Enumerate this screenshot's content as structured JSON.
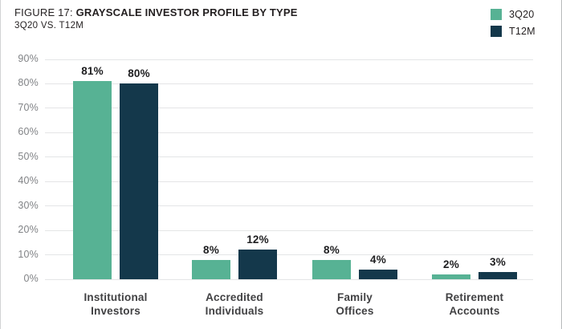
{
  "header": {
    "title_prefix": "FIGURE 17:",
    "title_main": "GRAYSCALE INVESTOR PROFILE BY TYPE",
    "subtitle": "3Q20 VS. T12M"
  },
  "colors": {
    "series_3q20": "#57b294",
    "series_t12m": "#14384b",
    "gridline": "#e4e5e6",
    "ytick_label": "#818386",
    "category_label": "#414143",
    "value_label": "#1e1e20",
    "title_text": "#231f20"
  },
  "chart_data": {
    "type": "bar",
    "title": "FIGURE 17: GRAYSCALE INVESTOR PROFILE BY TYPE",
    "subtitle": "3Q20 VS. T12M",
    "categories": [
      [
        "Institutional",
        "Investors"
      ],
      [
        "Accredited",
        "Individuals"
      ],
      [
        "Family",
        "Offices"
      ],
      [
        "Retirement",
        "Accounts"
      ]
    ],
    "series": [
      {
        "name": "3Q20",
        "color": "#57b294",
        "values": [
          81,
          8,
          8,
          2
        ]
      },
      {
        "name": "T12M",
        "color": "#14384b",
        "values": [
          80,
          12,
          4,
          3
        ]
      }
    ],
    "value_labels": [
      [
        "81%",
        "8%",
        "8%",
        "2%"
      ],
      [
        "80%",
        "12%",
        "4%",
        "3%"
      ]
    ],
    "xlabel": "",
    "ylabel": "",
    "ylim": [
      0,
      90
    ],
    "ytick_step": 10,
    "ytick_labels": [
      "0%",
      "10%",
      "20%",
      "30%",
      "40%",
      "50%",
      "60%",
      "70%",
      "80%",
      "90%"
    ],
    "grid": true,
    "legend_position": "top-right"
  }
}
